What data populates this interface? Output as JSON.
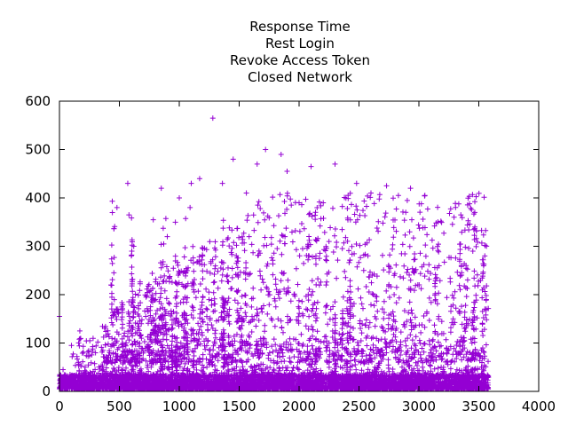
{
  "chart_data": {
    "type": "scatter",
    "title_lines": [
      "Response Time",
      "Rest Login",
      "Revoke Access Token",
      "Closed Network"
    ],
    "xlabel": "",
    "ylabel": "",
    "xlim": [
      0,
      4000
    ],
    "ylim": [
      0,
      600
    ],
    "x_ticks": [
      0,
      500,
      1000,
      1500,
      2000,
      2500,
      3000,
      3500,
      4000
    ],
    "y_ticks": [
      0,
      100,
      200,
      300,
      400,
      500,
      600
    ],
    "grid": false,
    "legend": "none",
    "series": [
      {
        "color": "#9400d3",
        "marker": "plus",
        "x_range": [
          0,
          3580
        ],
        "dense_band": [
          5,
          35
        ],
        "sample_points": [
          {
            "x": 0,
            "y": 155
          },
          {
            "x": 30,
            "y": 45
          },
          {
            "x": 100,
            "y": 95
          },
          {
            "x": 170,
            "y": 125
          },
          {
            "x": 430,
            "y": 220
          },
          {
            "x": 480,
            "y": 380
          },
          {
            "x": 570,
            "y": 430
          },
          {
            "x": 580,
            "y": 365
          },
          {
            "x": 620,
            "y": 300
          },
          {
            "x": 760,
            "y": 175
          },
          {
            "x": 850,
            "y": 420
          },
          {
            "x": 900,
            "y": 320
          },
          {
            "x": 1000,
            "y": 400
          },
          {
            "x": 1090,
            "y": 380
          },
          {
            "x": 1100,
            "y": 430
          },
          {
            "x": 1170,
            "y": 440
          },
          {
            "x": 1280,
            "y": 565
          },
          {
            "x": 1360,
            "y": 430
          },
          {
            "x": 1450,
            "y": 480
          },
          {
            "x": 1560,
            "y": 410
          },
          {
            "x": 1650,
            "y": 470
          },
          {
            "x": 1720,
            "y": 500
          },
          {
            "x": 1850,
            "y": 490
          },
          {
            "x": 1900,
            "y": 455
          },
          {
            "x": 2000,
            "y": 390
          },
          {
            "x": 2100,
            "y": 465
          },
          {
            "x": 2300,
            "y": 470
          },
          {
            "x": 2480,
            "y": 430
          },
          {
            "x": 2600,
            "y": 410
          },
          {
            "x": 2730,
            "y": 425
          },
          {
            "x": 2930,
            "y": 420
          },
          {
            "x": 3050,
            "y": 405
          },
          {
            "x": 3350,
            "y": 365
          },
          {
            "x": 3450,
            "y": 290
          },
          {
            "x": 3550,
            "y": 280
          }
        ]
      }
    ]
  }
}
